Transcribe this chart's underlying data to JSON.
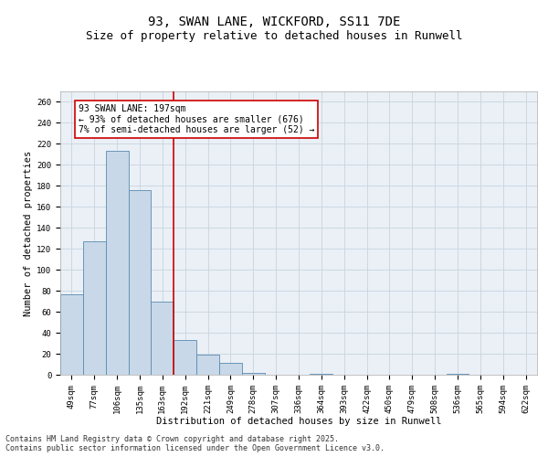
{
  "title": "93, SWAN LANE, WICKFORD, SS11 7DE",
  "subtitle": "Size of property relative to detached houses in Runwell",
  "xlabel": "Distribution of detached houses by size in Runwell",
  "ylabel": "Number of detached properties",
  "bar_color": "#c8d8e8",
  "bar_edge_color": "#5a8ab0",
  "categories": [
    "49sqm",
    "77sqm",
    "106sqm",
    "135sqm",
    "163sqm",
    "192sqm",
    "221sqm",
    "249sqm",
    "278sqm",
    "307sqm",
    "336sqm",
    "364sqm",
    "393sqm",
    "422sqm",
    "450sqm",
    "479sqm",
    "508sqm",
    "536sqm",
    "565sqm",
    "594sqm",
    "622sqm"
  ],
  "values": [
    77,
    127,
    213,
    176,
    70,
    33,
    19,
    11,
    2,
    0,
    0,
    1,
    0,
    0,
    0,
    0,
    0,
    1,
    0,
    0,
    0
  ],
  "vline_pos": 4.5,
  "vline_color": "#cc0000",
  "annotation_text": "93 SWAN LANE: 197sqm\n← 93% of detached houses are smaller (676)\n7% of semi-detached houses are larger (52) →",
  "annotation_box_facecolor": "#ffffff",
  "annotation_box_edgecolor": "#cc0000",
  "ylim": [
    0,
    270
  ],
  "yticks": [
    0,
    20,
    40,
    60,
    80,
    100,
    120,
    140,
    160,
    180,
    200,
    220,
    240,
    260
  ],
  "grid_color": "#c8d4e0",
  "plot_bg_color": "#eaf0f6",
  "footer_text": "Contains HM Land Registry data © Crown copyright and database right 2025.\nContains public sector information licensed under the Open Government Licence v3.0.",
  "title_fontsize": 10,
  "subtitle_fontsize": 9,
  "axis_label_fontsize": 7.5,
  "tick_fontsize": 6.5,
  "annot_fontsize": 7,
  "footer_fontsize": 6
}
